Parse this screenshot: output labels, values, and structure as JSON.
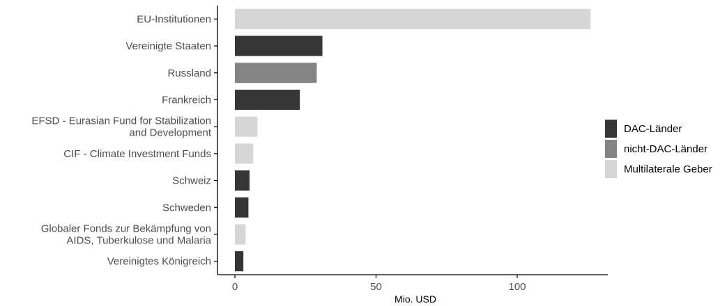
{
  "chart_data": {
    "type": "bar",
    "orientation": "horizontal",
    "xlabel": "Mio. USD",
    "ylabel": "",
    "xlim": [
      -6,
      132
    ],
    "xticks": [
      0,
      50,
      100
    ],
    "grid": false,
    "legend_position": "right",
    "categories": [
      {
        "label": [
          "EU-Institutionen"
        ],
        "value": 126,
        "group": "multi"
      },
      {
        "label": [
          "Vereinigte Staaten"
        ],
        "value": 31,
        "group": "dac"
      },
      {
        "label": [
          "Russland"
        ],
        "value": 29,
        "group": "nondac"
      },
      {
        "label": [
          "Frankreich"
        ],
        "value": 23,
        "group": "dac"
      },
      {
        "label": [
          "EFSD - Eurasian Fund for Stabilization",
          "and Development"
        ],
        "value": 8,
        "group": "multi"
      },
      {
        "label": [
          "CIF - Climate Investment Funds"
        ],
        "value": 6.5,
        "group": "multi"
      },
      {
        "label": [
          "Schweiz"
        ],
        "value": 5.2,
        "group": "dac"
      },
      {
        "label": [
          "Schweden"
        ],
        "value": 4.8,
        "group": "dac"
      },
      {
        "label": [
          "Globaler Fonds zur Bekämpfung von",
          "AIDS, Tuberkulose und Malaria"
        ],
        "value": 3.8,
        "group": "multi"
      },
      {
        "label": [
          "Vereinigtes Königreich"
        ],
        "value": 3.0,
        "group": "dac"
      }
    ],
    "legend": [
      {
        "key": "dac",
        "name": "DAC-Länder",
        "color": "#363636"
      },
      {
        "key": "nondac",
        "name": "nicht-DAC-Länder",
        "color": "#848484"
      },
      {
        "key": "multi",
        "name": "Multilaterale Geber",
        "color": "#d6d6d6"
      }
    ]
  }
}
